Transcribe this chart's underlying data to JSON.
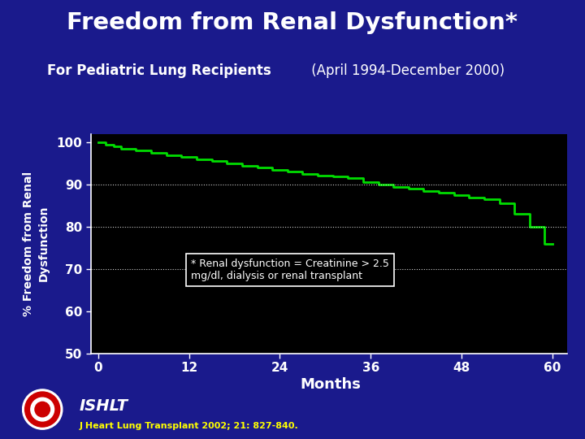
{
  "title": "Freedom from Renal Dysfunction*",
  "subtitle_bold": "For Pediatric Lung Recipients",
  "subtitle_normal": " (April 1994-December 2000)",
  "ylabel": "% Freedom from Renal\nDysfunction",
  "xlabel": "Months",
  "bg_color": "#1a1a8c",
  "plot_bg_color": "#000000",
  "title_color": "#ffffff",
  "subtitle_color": "#ffffff",
  "axis_label_color": "#ffffff",
  "tick_color": "#ffffff",
  "line_color": "#00dd00",
  "grid_color": "#ffffff",
  "annotation_text": "* Renal dysfunction = Creatinine > 2.5\nmg/dl, dialysis or renal transplant",
  "annotation_box_color": "#000000",
  "annotation_text_color": "#ffffff",
  "annotation_border_color": "#ffffff",
  "ishlt_text": "ISHLT",
  "citation_text": "J Heart Lung Transplant 2002; 21: 827-840.",
  "citation_color": "#ffff00",
  "ylim": [
    50,
    102
  ],
  "xlim": [
    -1,
    62
  ],
  "yticks": [
    50,
    60,
    70,
    80,
    90,
    100
  ],
  "xticks": [
    0,
    12,
    24,
    36,
    48,
    60
  ],
  "grid_yticks": [
    70,
    80,
    90
  ],
  "curve_x": [
    0,
    1,
    1,
    2,
    2,
    3,
    3,
    5,
    5,
    7,
    7,
    9,
    9,
    11,
    11,
    13,
    13,
    15,
    15,
    17,
    17,
    19,
    19,
    21,
    21,
    23,
    23,
    25,
    25,
    27,
    27,
    29,
    29,
    31,
    31,
    33,
    33,
    35,
    35,
    37,
    37,
    39,
    39,
    41,
    41,
    43,
    43,
    45,
    45,
    47,
    47,
    49,
    49,
    51,
    51,
    53,
    53,
    55,
    55,
    57,
    57,
    59,
    59,
    60
  ],
  "curve_y": [
    100,
    100,
    99.5,
    99.5,
    99,
    99,
    98.5,
    98.5,
    98,
    98,
    97.5,
    97.5,
    97,
    97,
    96.5,
    96.5,
    96.0,
    96.0,
    95.5,
    95.5,
    95.0,
    95.0,
    94.5,
    94.5,
    94.0,
    94.0,
    93.5,
    93.5,
    93.0,
    93.0,
    92.5,
    92.5,
    92.2,
    92.2,
    92.0,
    92.0,
    91.5,
    91.5,
    90.5,
    90.5,
    90.0,
    90.0,
    89.5,
    89.5,
    89.0,
    89.0,
    88.5,
    88.5,
    88.0,
    88.0,
    87.5,
    87.5,
    87.0,
    87.0,
    86.5,
    86.5,
    85.5,
    85.5,
    83.0,
    83.0,
    80.0,
    80.0,
    76.0,
    76.0
  ]
}
